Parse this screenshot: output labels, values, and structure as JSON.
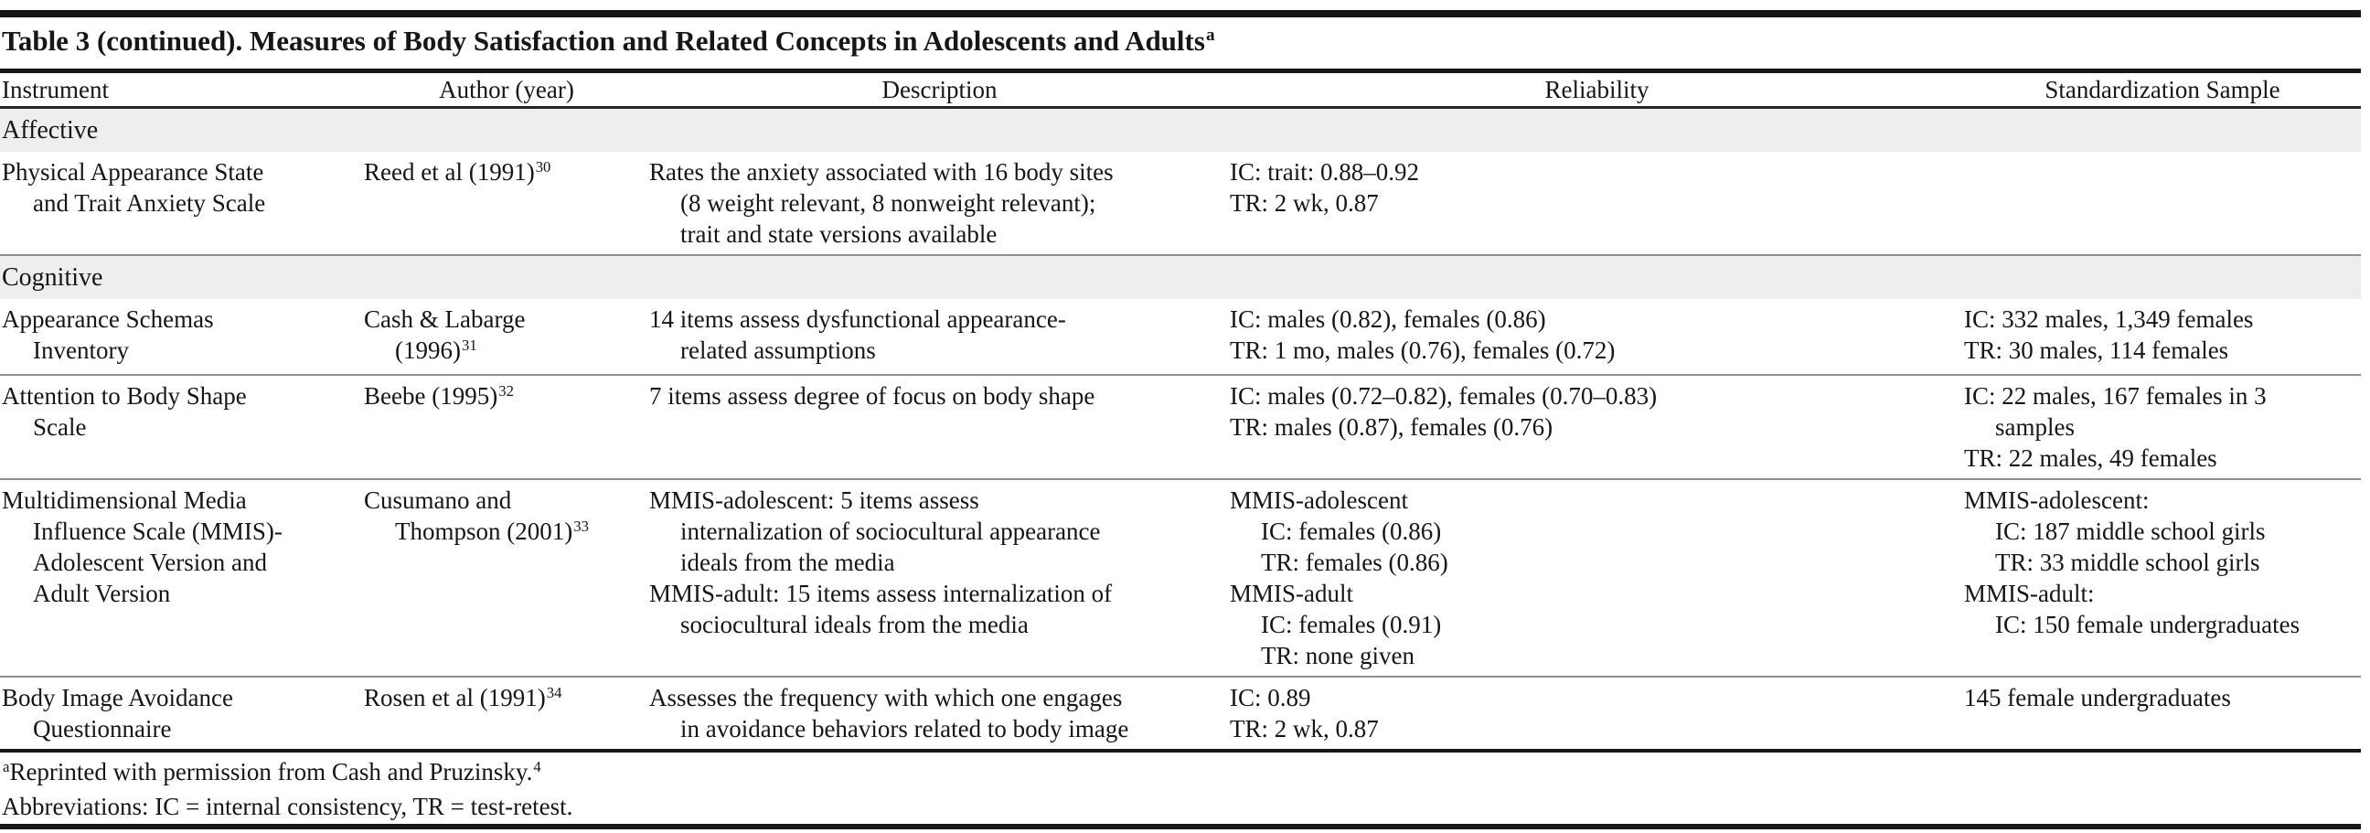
{
  "title": {
    "text": "Table 3 (continued). Measures of Body Satisfaction and Related Concepts in Adolescents and Adults",
    "sup": "a"
  },
  "columns": [
    "Instrument",
    "Author (year)",
    "Description",
    "Reliability",
    "Standardization Sample"
  ],
  "sections": [
    {
      "label": "Affective"
    },
    {
      "label": "Cognitive"
    }
  ],
  "rows": [
    {
      "instrument": [
        {
          "t": "Physical Appearance State"
        },
        {
          "t": "and Trait Anxiety Scale",
          "ind": 1
        }
      ],
      "author": [
        {
          "t": "Reed et al (1991)",
          "s": "30"
        }
      ],
      "description": [
        {
          "t": "Rates the anxiety associated with 16 body sites"
        },
        {
          "t": "(8 weight relevant, 8 nonweight relevant);",
          "ind": 1
        },
        {
          "t": "trait and state versions available",
          "ind": 1
        }
      ],
      "reliability": [
        {
          "t": "IC: trait: 0.88–0.92"
        },
        {
          "t": "TR: 2 wk, 0.87"
        }
      ],
      "standardization": []
    },
    {
      "instrument": [
        {
          "t": "Appearance Schemas"
        },
        {
          "t": "Inventory",
          "ind": 1
        }
      ],
      "author": [
        {
          "t": "Cash & Labarge"
        },
        {
          "t": "(1996)",
          "s": "31",
          "ind": 1
        }
      ],
      "description": [
        {
          "t": "14 items assess dysfunctional appearance-"
        },
        {
          "t": "related assumptions",
          "ind": 1
        }
      ],
      "reliability": [
        {
          "t": "IC: males (0.82), females (0.86)"
        },
        {
          "t": "TR: 1 mo, males (0.76), females (0.72)"
        }
      ],
      "standardization": [
        {
          "t": "IC: 332 males, 1,349 females"
        },
        {
          "t": "TR: 30 males, 114 females"
        }
      ]
    },
    {
      "instrument": [
        {
          "t": "Attention to Body Shape"
        },
        {
          "t": "Scale",
          "ind": 1
        }
      ],
      "author": [
        {
          "t": "Beebe (1995)",
          "s": "32"
        }
      ],
      "description": [
        {
          "t": "7 items assess degree of focus on body shape"
        }
      ],
      "reliability": [
        {
          "t": "IC: males (0.72–0.82), females (0.70–0.83)"
        },
        {
          "t": "TR: males (0.87), females (0.76)"
        }
      ],
      "standardization": [
        {
          "t": "IC: 22 males, 167 females in 3"
        },
        {
          "t": "samples",
          "ind": 1
        },
        {
          "t": "TR: 22 males, 49 females"
        }
      ]
    },
    {
      "instrument": [
        {
          "t": "Multidimensional Media"
        },
        {
          "t": "Influence Scale (MMIS)-",
          "ind": 1
        },
        {
          "t": "Adolescent Version and",
          "ind": 1
        },
        {
          "t": "Adult Version",
          "ind": 1
        }
      ],
      "author": [
        {
          "t": "Cusumano and"
        },
        {
          "t": "Thompson (2001)",
          "s": "33",
          "ind": 1
        }
      ],
      "description": [
        {
          "t": "MMIS-adolescent: 5 items assess"
        },
        {
          "t": "internalization of sociocultural appearance",
          "ind": 1
        },
        {
          "t": "ideals from the media",
          "ind": 1
        },
        {
          "t": "MMIS-adult: 15 items assess internalization of"
        },
        {
          "t": "sociocultural ideals from the media",
          "ind": 1
        }
      ],
      "reliability": [
        {
          "t": "MMIS-adolescent"
        },
        {
          "t": "IC: females (0.86)",
          "ind": 1
        },
        {
          "t": "TR: females (0.86)",
          "ind": 1
        },
        {
          "t": "MMIS-adult"
        },
        {
          "t": "IC: females (0.91)",
          "ind": 1
        },
        {
          "t": "TR: none given",
          "ind": 1
        }
      ],
      "standardization": [
        {
          "t": "MMIS-adolescent:"
        },
        {
          "t": "IC: 187 middle school girls",
          "ind": 1
        },
        {
          "t": "TR: 33 middle school girls",
          "ind": 1
        },
        {
          "t": "MMIS-adult:"
        },
        {
          "t": "IC: 150 female undergraduates",
          "ind": 1
        }
      ]
    },
    {
      "instrument": [
        {
          "t": "Body Image Avoidance"
        },
        {
          "t": "Questionnaire",
          "ind": 1
        }
      ],
      "author": [
        {
          "t": "Rosen et al (1991)",
          "s": "34"
        }
      ],
      "description": [
        {
          "t": "Assesses the frequency with which one engages"
        },
        {
          "t": "in avoidance behaviors related to body image",
          "ind": 1
        }
      ],
      "reliability": [
        {
          "t": "IC: 0.89"
        },
        {
          "t": "TR: 2 wk, 0.87"
        }
      ],
      "standardization": [
        {
          "t": "145 female undergraduates"
        }
      ]
    }
  ],
  "footnotes": [
    {
      "pre_sup": "a",
      "text": "Reprinted with permission from Cash and Pruzinsky.",
      "post_sup": "4"
    },
    {
      "text": "Abbreviations: IC = internal consistency, TR = test-retest."
    }
  ]
}
